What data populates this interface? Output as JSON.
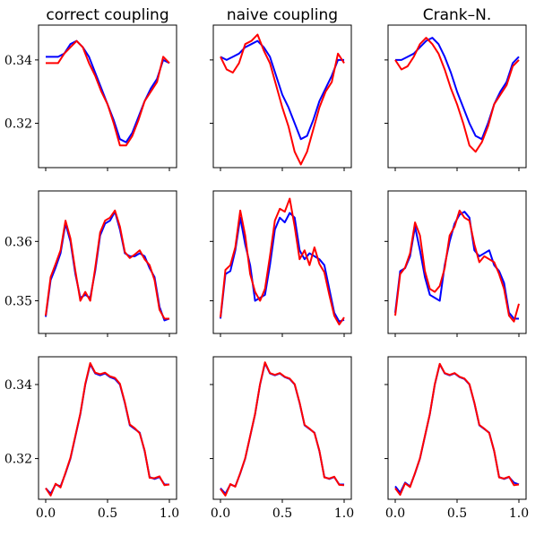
{
  "figure": {
    "column_titles": [
      "correct coupling",
      "naive coupling",
      "Crank–N."
    ]
  },
  "chart_data": {
    "type": "line",
    "layout": "grid 3 rows x 3 columns, shared y-axis per row, shared x-axis per column",
    "colors": {
      "series_a": "#0000ff",
      "series_b": "#ff0000"
    },
    "xlim": [
      0.0,
      1.0
    ],
    "xticks": [
      0.0,
      0.5,
      1.0
    ],
    "xtick_labels": [
      "0.0",
      "0.5",
      "1.0"
    ],
    "legend": "none",
    "grid": false,
    "rows": [
      {
        "ylim": [
          0.306,
          0.351
        ],
        "yticks": [
          0.32,
          0.34
        ],
        "ytick_labels": [
          "0.32",
          "0.34"
        ],
        "x": [
          0.0,
          0.05,
          0.1,
          0.15,
          0.2,
          0.25,
          0.3,
          0.35,
          0.4,
          0.45,
          0.5,
          0.55,
          0.6,
          0.65,
          0.7,
          0.75,
          0.8,
          0.85,
          0.9,
          0.95,
          1.0
        ],
        "panels": [
          {
            "title": "correct coupling",
            "series": [
              {
                "values": [
                  0.341,
                  0.341,
                  0.341,
                  0.342,
                  0.345,
                  0.346,
                  0.344,
                  0.341,
                  0.336,
                  0.331,
                  0.326,
                  0.321,
                  0.315,
                  0.314,
                  0.317,
                  0.322,
                  0.327,
                  0.331,
                  0.334,
                  0.34,
                  0.339
                ]
              },
              {
                "values": [
                  0.339,
                  0.339,
                  0.339,
                  0.342,
                  0.344,
                  0.346,
                  0.344,
                  0.339,
                  0.335,
                  0.33,
                  0.326,
                  0.32,
                  0.313,
                  0.313,
                  0.316,
                  0.321,
                  0.327,
                  0.33,
                  0.333,
                  0.341,
                  0.339
                ]
              }
            ]
          },
          {
            "title": "naive coupling",
            "series": [
              {
                "values": [
                  0.341,
                  0.34,
                  0.341,
                  0.342,
                  0.344,
                  0.345,
                  0.346,
                  0.344,
                  0.341,
                  0.335,
                  0.329,
                  0.325,
                  0.32,
                  0.315,
                  0.316,
                  0.321,
                  0.327,
                  0.331,
                  0.335,
                  0.34,
                  0.34
                ]
              },
              {
                "values": [
                  0.341,
                  0.337,
                  0.336,
                  0.339,
                  0.345,
                  0.346,
                  0.348,
                  0.343,
                  0.339,
                  0.332,
                  0.325,
                  0.319,
                  0.311,
                  0.307,
                  0.311,
                  0.318,
                  0.325,
                  0.33,
                  0.333,
                  0.342,
                  0.339
                ]
              }
            ]
          },
          {
            "title": "Crank–N.",
            "series": [
              {
                "values": [
                  0.34,
                  0.34,
                  0.341,
                  0.342,
                  0.344,
                  0.346,
                  0.347,
                  0.345,
                  0.341,
                  0.336,
                  0.33,
                  0.325,
                  0.32,
                  0.316,
                  0.315,
                  0.32,
                  0.326,
                  0.33,
                  0.333,
                  0.339,
                  0.341
                ]
              },
              {
                "values": [
                  0.34,
                  0.337,
                  0.338,
                  0.341,
                  0.345,
                  0.347,
                  0.345,
                  0.342,
                  0.337,
                  0.331,
                  0.326,
                  0.32,
                  0.313,
                  0.311,
                  0.314,
                  0.319,
                  0.326,
                  0.329,
                  0.332,
                  0.338,
                  0.34
                ]
              }
            ]
          }
        ]
      },
      {
        "ylim": [
          0.3445,
          0.3685
        ],
        "yticks": [
          0.35,
          0.36
        ],
        "ytick_labels": [
          "0.35",
          "0.36"
        ],
        "x": [
          0.0,
          0.04,
          0.08,
          0.12,
          0.16,
          0.2,
          0.24,
          0.28,
          0.32,
          0.36,
          0.4,
          0.44,
          0.48,
          0.52,
          0.56,
          0.6,
          0.64,
          0.68,
          0.72,
          0.76,
          0.8,
          0.84,
          0.88,
          0.92,
          0.96,
          1.0
        ],
        "panels": [
          {
            "title": "correct coupling",
            "series": [
              {
                "values": [
                  0.3473,
                  0.3535,
                  0.3556,
                  0.358,
                  0.363,
                  0.36,
                  0.3545,
                  0.3505,
                  0.351,
                  0.3505,
                  0.355,
                  0.361,
                  0.363,
                  0.3635,
                  0.365,
                  0.362,
                  0.358,
                  0.3575,
                  0.3575,
                  0.358,
                  0.3575,
                  0.3555,
                  0.354,
                  0.349,
                  0.3467,
                  0.347
                ]
              },
              {
                "values": [
                  0.3475,
                  0.354,
                  0.3562,
                  0.3585,
                  0.3635,
                  0.3605,
                  0.355,
                  0.35,
                  0.3515,
                  0.35,
                  0.3555,
                  0.3615,
                  0.3635,
                  0.364,
                  0.3652,
                  0.3625,
                  0.3582,
                  0.3572,
                  0.3578,
                  0.3585,
                  0.357,
                  0.356,
                  0.3535,
                  0.3485,
                  0.347,
                  0.347
                ]
              }
            ]
          },
          {
            "title": "naive coupling",
            "series": [
              {
                "values": [
                  0.347,
                  0.3545,
                  0.355,
                  0.3585,
                  0.364,
                  0.3595,
                  0.356,
                  0.35,
                  0.3505,
                  0.351,
                  0.356,
                  0.362,
                  0.364,
                  0.3632,
                  0.3648,
                  0.364,
                  0.3585,
                  0.357,
                  0.358,
                  0.3575,
                  0.357,
                  0.356,
                  0.352,
                  0.348,
                  0.3465,
                  0.3468
                ]
              },
              {
                "values": [
                  0.3472,
                  0.3552,
                  0.356,
                  0.359,
                  0.3652,
                  0.361,
                  0.3545,
                  0.3515,
                  0.35,
                  0.352,
                  0.3575,
                  0.3635,
                  0.3655,
                  0.365,
                  0.3672,
                  0.3625,
                  0.357,
                  0.3585,
                  0.356,
                  0.359,
                  0.3562,
                  0.3548,
                  0.351,
                  0.3475,
                  0.346,
                  0.3472
                ]
              }
            ]
          },
          {
            "title": "Crank–N.",
            "series": [
              {
                "values": [
                  0.348,
                  0.355,
                  0.3555,
                  0.3575,
                  0.3625,
                  0.3585,
                  0.354,
                  0.351,
                  0.3505,
                  0.35,
                  0.356,
                  0.36,
                  0.363,
                  0.3645,
                  0.365,
                  0.364,
                  0.3585,
                  0.3575,
                  0.358,
                  0.3585,
                  0.356,
                  0.355,
                  0.353,
                  0.348,
                  0.347,
                  0.347
                ]
              },
              {
                "values": [
                  0.3475,
                  0.3545,
                  0.3556,
                  0.358,
                  0.3632,
                  0.361,
                  0.355,
                  0.352,
                  0.3515,
                  0.3525,
                  0.3555,
                  0.361,
                  0.3625,
                  0.3652,
                  0.364,
                  0.3635,
                  0.3595,
                  0.3565,
                  0.3575,
                  0.357,
                  0.3565,
                  0.3545,
                  0.352,
                  0.3475,
                  0.3465,
                  0.3495
                ]
              }
            ]
          }
        ]
      },
      {
        "ylim": [
          0.309,
          0.3475
        ],
        "yticks": [
          0.32,
          0.34
        ],
        "ytick_labels": [
          "0.32",
          "0.34"
        ],
        "x": [
          0.0,
          0.04,
          0.08,
          0.12,
          0.16,
          0.2,
          0.24,
          0.28,
          0.32,
          0.36,
          0.4,
          0.44,
          0.48,
          0.52,
          0.56,
          0.6,
          0.64,
          0.68,
          0.72,
          0.76,
          0.8,
          0.84,
          0.88,
          0.92,
          0.96,
          1.0
        ],
        "panels": [
          {
            "title": "correct coupling",
            "series": [
              {
                "values": [
                  0.312,
                  0.3105,
                  0.313,
                  0.3125,
                  0.316,
                  0.32,
                  0.326,
                  0.332,
                  0.34,
                  0.3455,
                  0.343,
                  0.3425,
                  0.343,
                  0.342,
                  0.3415,
                  0.34,
                  0.335,
                  0.329,
                  0.328,
                  0.327,
                  0.322,
                  0.315,
                  0.3145,
                  0.315,
                  0.313,
                  0.313
                ]
              },
              {
                "values": [
                  0.312,
                  0.31,
                  0.3132,
                  0.3122,
                  0.3162,
                  0.3202,
                  0.3262,
                  0.3322,
                  0.3402,
                  0.3458,
                  0.3432,
                  0.3428,
                  0.3432,
                  0.3422,
                  0.3418,
                  0.3402,
                  0.3352,
                  0.3292,
                  0.3282,
                  0.3268,
                  0.3222,
                  0.3148,
                  0.3147,
                  0.3152,
                  0.3128,
                  0.313
                ]
              }
            ]
          },
          {
            "title": "naive coupling",
            "series": [
              {
                "values": [
                  0.312,
                  0.3105,
                  0.313,
                  0.3125,
                  0.316,
                  0.32,
                  0.326,
                  0.332,
                  0.34,
                  0.3458,
                  0.343,
                  0.3425,
                  0.343,
                  0.342,
                  0.3415,
                  0.34,
                  0.335,
                  0.329,
                  0.328,
                  0.327,
                  0.322,
                  0.315,
                  0.3145,
                  0.315,
                  0.313,
                  0.313
                ]
              },
              {
                "values": [
                  0.3118,
                  0.31,
                  0.3131,
                  0.3124,
                  0.3161,
                  0.3201,
                  0.3261,
                  0.3321,
                  0.3401,
                  0.346,
                  0.3431,
                  0.3426,
                  0.3431,
                  0.3421,
                  0.3416,
                  0.3401,
                  0.3351,
                  0.3291,
                  0.3281,
                  0.3269,
                  0.3221,
                  0.3149,
                  0.3146,
                  0.3151,
                  0.3129,
                  0.3128
                ]
              }
            ]
          },
          {
            "title": "Crank–N.",
            "series": [
              {
                "values": [
                  0.3125,
                  0.3108,
                  0.3135,
                  0.3125,
                  0.316,
                  0.32,
                  0.326,
                  0.332,
                  0.34,
                  0.3455,
                  0.343,
                  0.3425,
                  0.343,
                  0.342,
                  0.3415,
                  0.34,
                  0.335,
                  0.329,
                  0.328,
                  0.327,
                  0.322,
                  0.315,
                  0.3145,
                  0.315,
                  0.3135,
                  0.313
                ]
              },
              {
                "values": [
                  0.312,
                  0.3102,
                  0.3133,
                  0.3123,
                  0.3161,
                  0.3201,
                  0.3261,
                  0.3321,
                  0.3401,
                  0.3456,
                  0.3431,
                  0.3426,
                  0.3431,
                  0.3421,
                  0.3416,
                  0.3401,
                  0.3351,
                  0.3291,
                  0.3281,
                  0.3269,
                  0.3221,
                  0.3149,
                  0.3146,
                  0.3151,
                  0.3128,
                  0.313
                ]
              }
            ]
          }
        ]
      }
    ]
  }
}
